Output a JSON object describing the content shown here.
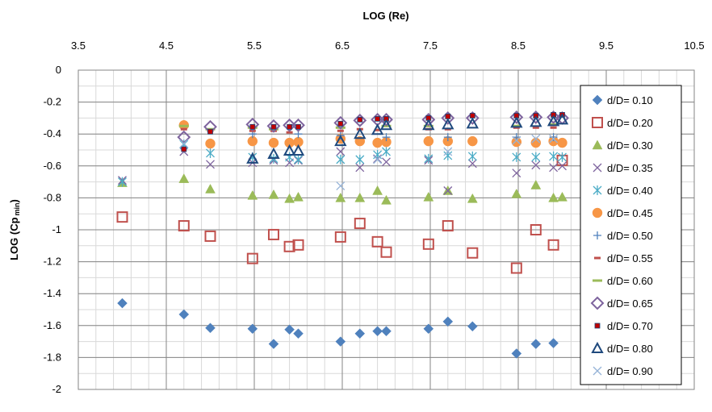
{
  "chart_data": {
    "type": "scatter",
    "title": "",
    "xlabel": "LOG (Re)",
    "ylabel": "LOG (Cp min)",
    "ylabel_main": "LOG (Cp",
    "ylabel_sub": "min",
    "ylabel_close": ")",
    "xlim": [
      3.5,
      10.5
    ],
    "ylim": [
      -2,
      0
    ],
    "x_major_ticks": [
      "3.5",
      "4.5",
      "5.5",
      "6.5",
      "7.5",
      "8.5",
      "9.5",
      "10.5"
    ],
    "y_major_ticks": [
      "0",
      "-0.2",
      "-0.4",
      "-0.6",
      "-0.8",
      "-1",
      "-1.2",
      "-1.4",
      "-1.6",
      "-1.8",
      "-2"
    ],
    "x_axis_position": "top",
    "grid": true,
    "legend_position": "right",
    "series": [
      {
        "name": "d/D= 0.10",
        "marker": "diamond",
        "color": "#4F81BD",
        "points": [
          [
            4.0,
            -1.46
          ],
          [
            4.7,
            -1.53
          ],
          [
            5.0,
            -1.615
          ],
          [
            5.48,
            -1.62
          ],
          [
            5.72,
            -1.715
          ],
          [
            5.9,
            -1.625
          ],
          [
            6.0,
            -1.65
          ],
          [
            6.48,
            -1.7
          ],
          [
            6.7,
            -1.65
          ],
          [
            6.9,
            -1.635
          ],
          [
            7.0,
            -1.635
          ],
          [
            7.48,
            -1.62
          ],
          [
            7.7,
            -1.575
          ],
          [
            7.98,
            -1.605
          ],
          [
            8.48,
            -1.775
          ],
          [
            8.7,
            -1.715
          ],
          [
            8.9,
            -1.71
          ]
        ]
      },
      {
        "name": "d/D= 0.20",
        "marker": "square-open",
        "color": "#C0504D",
        "points": [
          [
            4.0,
            -0.92
          ],
          [
            4.7,
            -0.975
          ],
          [
            5.0,
            -1.04
          ],
          [
            5.48,
            -1.18
          ],
          [
            5.72,
            -1.03
          ],
          [
            5.9,
            -1.105
          ],
          [
            6.0,
            -1.095
          ],
          [
            6.48,
            -1.045
          ],
          [
            6.7,
            -0.96
          ],
          [
            6.9,
            -1.075
          ],
          [
            7.0,
            -1.14
          ],
          [
            7.48,
            -1.09
          ],
          [
            7.7,
            -0.975
          ],
          [
            7.98,
            -1.145
          ],
          [
            8.48,
            -1.24
          ],
          [
            8.7,
            -1.0
          ],
          [
            8.9,
            -1.095
          ],
          [
            9.0,
            -0.565
          ]
        ]
      },
      {
        "name": "d/D= 0.30",
        "marker": "triangle",
        "color": "#9BBB59",
        "points": [
          [
            4.0,
            -0.705
          ],
          [
            4.7,
            -0.68
          ],
          [
            5.0,
            -0.745
          ],
          [
            5.48,
            -0.785
          ],
          [
            5.72,
            -0.78
          ],
          [
            5.9,
            -0.805
          ],
          [
            6.0,
            -0.795
          ],
          [
            6.48,
            -0.8
          ],
          [
            6.7,
            -0.8
          ],
          [
            6.9,
            -0.755
          ],
          [
            7.0,
            -0.815
          ],
          [
            7.48,
            -0.795
          ],
          [
            7.7,
            -0.755
          ],
          [
            7.98,
            -0.805
          ],
          [
            8.48,
            -0.775
          ],
          [
            8.7,
            -0.72
          ],
          [
            8.9,
            -0.8
          ],
          [
            9.0,
            -0.795
          ]
        ]
      },
      {
        "name": "d/D= 0.35",
        "marker": "x",
        "color": "#7E649E",
        "points": [
          [
            4.0,
            -0.69
          ],
          [
            4.7,
            -0.51
          ],
          [
            5.0,
            -0.59
          ],
          [
            5.48,
            -0.58
          ],
          [
            5.72,
            -0.565
          ],
          [
            5.9,
            -0.58
          ],
          [
            6.0,
            -0.565
          ],
          [
            6.48,
            -0.51
          ],
          [
            6.7,
            -0.61
          ],
          [
            6.9,
            -0.555
          ],
          [
            7.0,
            -0.575
          ],
          [
            7.48,
            -0.565
          ],
          [
            7.7,
            -0.755
          ],
          [
            7.98,
            -0.585
          ],
          [
            8.48,
            -0.645
          ],
          [
            8.7,
            -0.595
          ],
          [
            8.9,
            -0.61
          ],
          [
            9.0,
            -0.6
          ]
        ]
      },
      {
        "name": "d/D= 0.40",
        "marker": "asterisk",
        "color": "#4BACC6",
        "points": [
          [
            4.0,
            -0.7
          ],
          [
            4.7,
            -0.465
          ],
          [
            5.0,
            -0.52
          ],
          [
            5.48,
            -0.545
          ],
          [
            5.72,
            -0.555
          ],
          [
            5.9,
            -0.545
          ],
          [
            6.0,
            -0.56
          ],
          [
            6.48,
            -0.56
          ],
          [
            6.7,
            -0.56
          ],
          [
            6.9,
            -0.53
          ],
          [
            7.0,
            -0.51
          ],
          [
            7.48,
            -0.555
          ],
          [
            7.7,
            -0.535
          ],
          [
            7.98,
            -0.54
          ],
          [
            8.48,
            -0.545
          ],
          [
            8.7,
            -0.545
          ],
          [
            8.9,
            -0.54
          ],
          [
            9.0,
            -0.545
          ]
        ]
      },
      {
        "name": "d/D= 0.45",
        "marker": "circle",
        "color": "#F79646",
        "points": [
          [
            4.7,
            -0.345
          ],
          [
            5.0,
            -0.46
          ],
          [
            5.48,
            -0.445
          ],
          [
            5.72,
            -0.455
          ],
          [
            5.9,
            -0.455
          ],
          [
            6.0,
            -0.45
          ],
          [
            6.48,
            -0.43
          ],
          [
            6.7,
            -0.445
          ],
          [
            6.9,
            -0.455
          ],
          [
            7.0,
            -0.45
          ],
          [
            7.48,
            -0.445
          ],
          [
            7.7,
            -0.445
          ],
          [
            7.98,
            -0.445
          ],
          [
            8.48,
            -0.45
          ],
          [
            8.7,
            -0.455
          ],
          [
            8.9,
            -0.445
          ],
          [
            9.0,
            -0.455
          ]
        ]
      },
      {
        "name": "d/D= 0.50",
        "marker": "plus",
        "color": "#4F81BD",
        "points": [
          [
            5.48,
            -0.4
          ],
          [
            6.0,
            -0.4
          ],
          [
            6.48,
            -0.41
          ],
          [
            7.0,
            -0.42
          ],
          [
            7.7,
            -0.42
          ],
          [
            8.48,
            -0.42
          ],
          [
            8.9,
            -0.42
          ]
        ]
      },
      {
        "name": "d/D= 0.55",
        "marker": "dash",
        "color": "#C0504D",
        "points": [
          [
            4.7,
            -0.37
          ],
          [
            5.0,
            -0.38
          ],
          [
            5.48,
            -0.38
          ],
          [
            5.72,
            -0.38
          ],
          [
            5.9,
            -0.39
          ],
          [
            6.48,
            -0.38
          ],
          [
            6.7,
            -0.37
          ],
          [
            6.9,
            -0.375
          ],
          [
            7.48,
            -0.37
          ],
          [
            7.7,
            -0.37
          ],
          [
            8.48,
            -0.36
          ],
          [
            8.7,
            -0.36
          ],
          [
            8.9,
            -0.36
          ]
        ]
      },
      {
        "name": "d/D= 0.60",
        "marker": "hline",
        "color": "#9BBB59",
        "points": [
          [
            4.7,
            -0.35
          ],
          [
            5.0,
            -0.37
          ],
          [
            5.48,
            -0.36
          ],
          [
            5.72,
            -0.37
          ],
          [
            6.48,
            -0.36
          ],
          [
            7.0,
            -0.35
          ],
          [
            7.48,
            -0.35
          ],
          [
            8.48,
            -0.35
          ],
          [
            8.9,
            -0.34
          ]
        ]
      },
      {
        "name": "d/D= 0.65",
        "marker": "diamond-open",
        "color": "#7E649E",
        "points": [
          [
            4.7,
            -0.42
          ],
          [
            5.0,
            -0.355
          ],
          [
            5.48,
            -0.34
          ],
          [
            5.72,
            -0.35
          ],
          [
            5.9,
            -0.345
          ],
          [
            6.0,
            -0.345
          ],
          [
            6.48,
            -0.33
          ],
          [
            6.7,
            -0.315
          ],
          [
            6.9,
            -0.31
          ],
          [
            7.0,
            -0.31
          ],
          [
            7.48,
            -0.31
          ],
          [
            7.7,
            -0.3
          ],
          [
            7.98,
            -0.3
          ],
          [
            8.48,
            -0.295
          ],
          [
            8.7,
            -0.295
          ],
          [
            8.9,
            -0.295
          ],
          [
            9.0,
            -0.3
          ]
        ]
      },
      {
        "name": "d/D= 0.70",
        "marker": "square-small",
        "color": "#C00000",
        "points": [
          [
            4.7,
            -0.495
          ],
          [
            5.0,
            -0.385
          ],
          [
            5.48,
            -0.355
          ],
          [
            5.72,
            -0.355
          ],
          [
            5.9,
            -0.355
          ],
          [
            6.0,
            -0.355
          ],
          [
            6.48,
            -0.335
          ],
          [
            6.7,
            -0.31
          ],
          [
            6.9,
            -0.305
          ],
          [
            7.0,
            -0.305
          ],
          [
            7.48,
            -0.3
          ],
          [
            7.7,
            -0.29
          ],
          [
            7.98,
            -0.285
          ],
          [
            8.48,
            -0.285
          ],
          [
            8.7,
            -0.285
          ],
          [
            8.9,
            -0.28
          ],
          [
            9.0,
            -0.28
          ]
        ]
      },
      {
        "name": "d/D= 0.80",
        "marker": "triangle-open",
        "color": "#1F497D",
        "points": [
          [
            5.48,
            -0.555
          ],
          [
            5.72,
            -0.525
          ],
          [
            5.9,
            -0.505
          ],
          [
            6.0,
            -0.505
          ],
          [
            6.48,
            -0.445
          ],
          [
            6.7,
            -0.4
          ],
          [
            6.9,
            -0.375
          ],
          [
            7.0,
            -0.345
          ],
          [
            7.48,
            -0.345
          ],
          [
            7.7,
            -0.34
          ],
          [
            7.98,
            -0.335
          ],
          [
            8.48,
            -0.33
          ],
          [
            8.7,
            -0.325
          ],
          [
            8.9,
            -0.32
          ],
          [
            9.0,
            -0.31
          ]
        ]
      },
      {
        "name": "d/D= 0.90",
        "marker": "x-light",
        "color": "#95B3D7",
        "points": [
          [
            4.7,
            -0.46
          ],
          [
            6.48,
            -0.725
          ],
          [
            6.9,
            -0.56
          ],
          [
            7.7,
            -0.51
          ],
          [
            8.48,
            -0.44
          ],
          [
            8.7,
            -0.43
          ],
          [
            8.9,
            -0.43
          ]
        ]
      }
    ]
  }
}
